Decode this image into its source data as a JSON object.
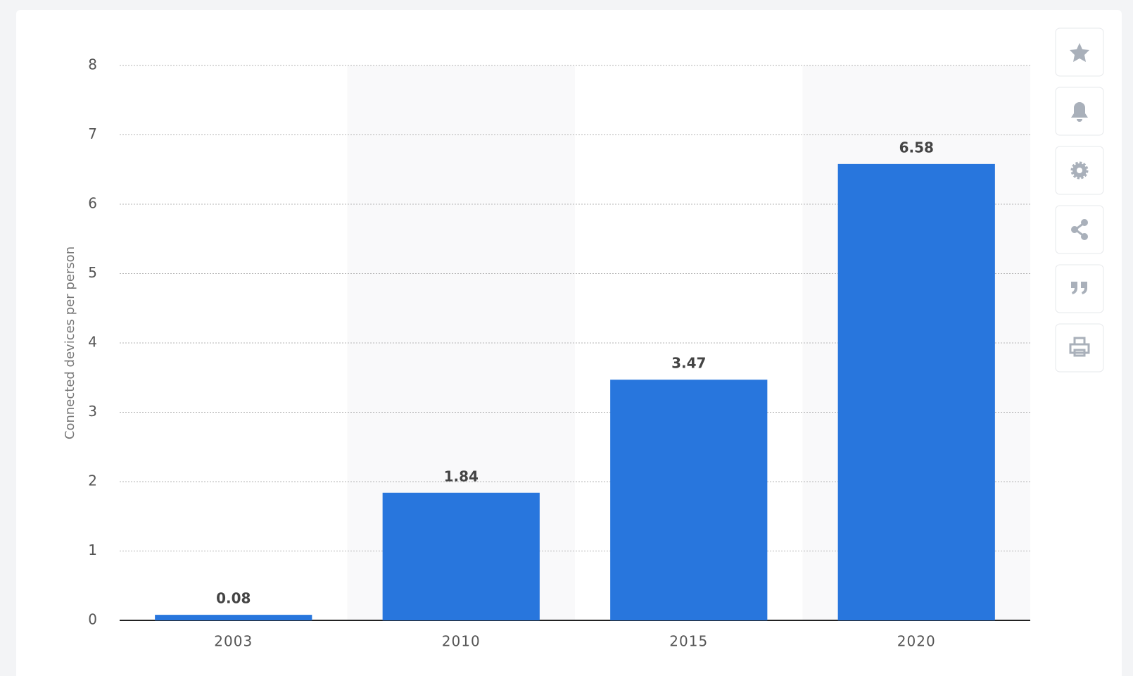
{
  "chart_data": {
    "type": "bar",
    "y_axis_label": "Connected devices per person",
    "categories": [
      "2003",
      "2010",
      "2015",
      "2020"
    ],
    "values": [
      0.08,
      1.84,
      3.47,
      6.58
    ],
    "color": "#2876dd",
    "ylim": [
      0,
      8
    ],
    "yticks": [
      0,
      1,
      2,
      3,
      4,
      5,
      6,
      7,
      8
    ],
    "grid": true
  }
}
